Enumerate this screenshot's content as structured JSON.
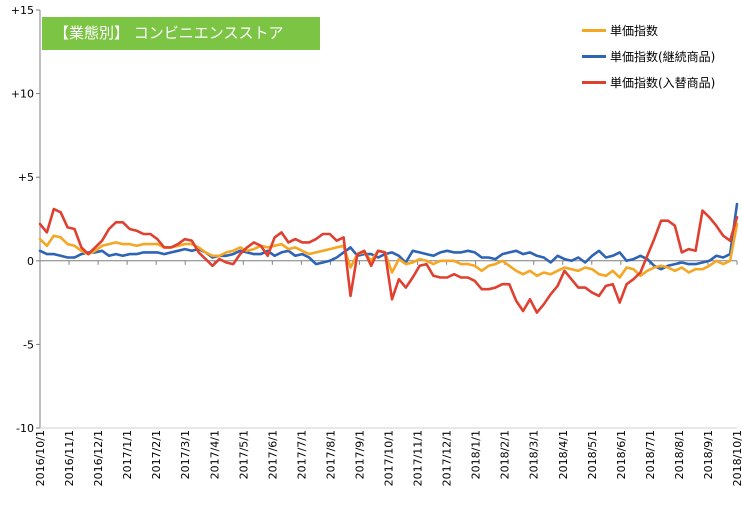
{
  "chart_data": {
    "type": "line",
    "title": "【業態別】 コンビニエンスストア",
    "xlabel": "",
    "ylabel": "",
    "ylim": [
      -10,
      15
    ],
    "yticks": [
      {
        "value": 15,
        "label": "+15"
      },
      {
        "value": 10,
        "label": "+10"
      },
      {
        "value": 5,
        "label": "+5"
      },
      {
        "value": 0,
        "label": "0"
      },
      {
        "value": -5,
        "label": "-5"
      },
      {
        "value": -10,
        "label": "-10"
      }
    ],
    "xticks": [
      "2016/10/1",
      "2016/11/1",
      "2016/12/1",
      "2017/1/1",
      "2017/2/1",
      "2017/3/1",
      "2017/4/1",
      "2017/5/1",
      "2017/6/1",
      "2017/7/1",
      "2017/8/1",
      "2017/9/1",
      "2017/10/1",
      "2017/11/1",
      "2017/12/1",
      "2018/1/1",
      "2018/2/1",
      "2018/3/1",
      "2018/4/1",
      "2018/5/1",
      "2018/6/1",
      "2018/7/1",
      "2018/8/1",
      "2018/9/1",
      "2018/10/1"
    ],
    "grid": false,
    "legend_position": "top-right",
    "series": [
      {
        "name": "単価指数",
        "color": "#f5a623",
        "values": [
          1.3,
          0.9,
          1.5,
          1.4,
          1.0,
          0.9,
          0.6,
          0.4,
          0.6,
          0.9,
          1.0,
          1.1,
          1.0,
          1.0,
          0.9,
          1.0,
          1.0,
          1.0,
          0.8,
          0.8,
          0.9,
          1.0,
          1.0,
          0.8,
          0.5,
          0.3,
          0.3,
          0.5,
          0.6,
          0.8,
          0.6,
          0.7,
          0.9,
          0.8,
          0.9,
          1.0,
          0.7,
          0.8,
          0.6,
          0.4,
          0.5,
          0.6,
          0.7,
          0.8,
          0.9,
          -0.4,
          0.4,
          0.5,
          0.0,
          0.6,
          0.5,
          -0.7,
          0.1,
          -0.2,
          -0.1,
          0.1,
          0.0,
          -0.2,
          0.0,
          0.0,
          0.0,
          -0.2,
          -0.2,
          -0.3,
          -0.6,
          -0.3,
          -0.2,
          0.0,
          -0.3,
          -0.6,
          -0.8,
          -0.6,
          -0.9,
          -0.7,
          -0.8,
          -0.6,
          -0.4,
          -0.5,
          -0.6,
          -0.4,
          -0.5,
          -0.8,
          -0.9,
          -0.6,
          -1.0,
          -0.4,
          -0.5,
          -0.9,
          -0.6,
          -0.4,
          -0.3,
          -0.4,
          -0.6,
          -0.4,
          -0.7,
          -0.5,
          -0.5,
          -0.3,
          0.0,
          -0.2,
          0.0,
          2.2
        ]
      },
      {
        "name": "単価指数(継続商品)",
        "color": "#2e63b5",
        "values": [
          0.6,
          0.4,
          0.4,
          0.3,
          0.2,
          0.2,
          0.4,
          0.5,
          0.5,
          0.6,
          0.3,
          0.4,
          0.3,
          0.4,
          0.4,
          0.5,
          0.5,
          0.5,
          0.4,
          0.5,
          0.6,
          0.7,
          0.6,
          0.7,
          0.5,
          0.2,
          0.3,
          0.3,
          0.4,
          0.6,
          0.5,
          0.4,
          0.4,
          0.6,
          0.3,
          0.5,
          0.6,
          0.3,
          0.4,
          0.2,
          -0.2,
          -0.1,
          0.0,
          0.2,
          0.5,
          0.8,
          0.3,
          0.4,
          0.4,
          0.2,
          0.4,
          0.5,
          0.3,
          -0.1,
          0.6,
          0.5,
          0.4,
          0.3,
          0.5,
          0.6,
          0.5,
          0.5,
          0.6,
          0.5,
          0.2,
          0.2,
          0.1,
          0.4,
          0.5,
          0.6,
          0.4,
          0.5,
          0.3,
          0.2,
          -0.1,
          0.3,
          0.1,
          0.0,
          0.2,
          -0.1,
          0.3,
          0.6,
          0.2,
          0.3,
          0.5,
          0.0,
          0.1,
          0.3,
          0.1,
          -0.3,
          -0.5,
          -0.3,
          -0.2,
          -0.1,
          -0.2,
          -0.2,
          -0.1,
          0.0,
          0.3,
          0.2,
          0.4,
          3.4
        ]
      },
      {
        "name": "単価指数(入替商品)",
        "color": "#e04030",
        "values": [
          2.2,
          1.7,
          3.1,
          2.9,
          2.0,
          1.9,
          0.8,
          0.4,
          0.8,
          1.2,
          1.9,
          2.3,
          2.3,
          1.9,
          1.8,
          1.6,
          1.6,
          1.3,
          0.8,
          0.8,
          1.0,
          1.3,
          1.2,
          0.5,
          0.1,
          -0.3,
          0.1,
          -0.1,
          -0.2,
          0.4,
          0.8,
          1.1,
          0.9,
          0.3,
          1.4,
          1.7,
          1.1,
          1.3,
          1.1,
          1.1,
          1.3,
          1.6,
          1.6,
          1.2,
          1.4,
          -2.1,
          0.4,
          0.6,
          -0.3,
          0.6,
          0.5,
          -2.3,
          -1.1,
          -1.6,
          -1.0,
          -0.3,
          -0.2,
          -0.9,
          -1.0,
          -1.0,
          -0.8,
          -1.0,
          -1.0,
          -1.2,
          -1.7,
          -1.7,
          -1.6,
          -1.4,
          -1.4,
          -2.4,
          -3.0,
          -2.3,
          -3.1,
          -2.6,
          -2.0,
          -1.5,
          -0.6,
          -1.1,
          -1.6,
          -1.6,
          -1.9,
          -2.1,
          -1.5,
          -1.4,
          -2.5,
          -1.4,
          -1.1,
          -0.7,
          0.3,
          1.3,
          2.4,
          2.4,
          2.1,
          0.5,
          0.7,
          0.6,
          3.0,
          2.6,
          2.1,
          1.5,
          1.2,
          2.6
        ]
      }
    ]
  }
}
